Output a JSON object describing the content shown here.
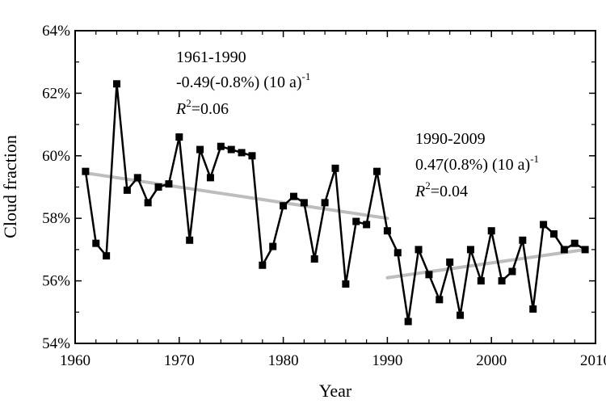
{
  "chart_data": {
    "type": "line",
    "xlabel": "Year",
    "ylabel": "Cloud fraction",
    "xlim": [
      1960,
      2010
    ],
    "ylim": [
      54,
      64
    ],
    "xticks": [
      "1960",
      "1970",
      "1980",
      "1990",
      "2000",
      "2010"
    ],
    "yticks": [
      "54%",
      "56%",
      "58%",
      "60%",
      "62%",
      "64%"
    ],
    "series": [
      {
        "marker": "square",
        "color": "#000000",
        "x": [
          1961,
          1962,
          1963,
          1964,
          1965,
          1966,
          1967,
          1968,
          1969,
          1970,
          1971,
          1972,
          1973,
          1974,
          1975,
          1976,
          1977,
          1978,
          1979,
          1980,
          1981,
          1982,
          1983,
          1984,
          1985,
          1986,
          1987,
          1988,
          1989,
          1990,
          1991,
          1992,
          1993,
          1994,
          1995,
          1996,
          1997,
          1998,
          1999,
          2000,
          2001,
          2002,
          2003,
          2004,
          2005,
          2006,
          2007,
          2008,
          2009
        ],
        "y": [
          59.5,
          57.2,
          56.8,
          62.3,
          58.9,
          59.3,
          58.5,
          59.0,
          59.1,
          60.6,
          57.3,
          60.2,
          59.3,
          60.3,
          60.2,
          60.1,
          60.0,
          56.5,
          57.1,
          58.4,
          58.7,
          58.5,
          56.7,
          58.5,
          59.6,
          55.9,
          57.9,
          57.8,
          59.5,
          57.6,
          56.9,
          54.7,
          57.0,
          56.2,
          55.4,
          56.6,
          54.9,
          57.0,
          56.0,
          57.6,
          56.0,
          56.3,
          57.3,
          55.1,
          57.8,
          57.5,
          57.0,
          57.2,
          57.0
        ]
      }
    ],
    "trends": [
      {
        "period": "1961-1990",
        "x": [
          1961,
          1990
        ],
        "y": [
          59.45,
          58.0
        ],
        "color": "#bdbdbd"
      },
      {
        "period": "1990-2009",
        "x": [
          1990,
          2009
        ],
        "y": [
          56.1,
          57.0
        ],
        "color": "#bdbdbd"
      }
    ],
    "annotations": {
      "a1_period": "1961-1990",
      "a1_rate": "-0.49(-0.8%) (10 a)",
      "a1_rate_exp": "-1",
      "a1_r": "R",
      "a1_r_exp": "2",
      "a1_r_val": "=0.06",
      "a2_period": "1990-2009",
      "a2_rate": "0.47(0.8%) (10 a)",
      "a2_rate_exp": "-1",
      "a2_r": "R",
      "a2_r_exp": "2",
      "a2_r_val": "=0.04"
    }
  }
}
